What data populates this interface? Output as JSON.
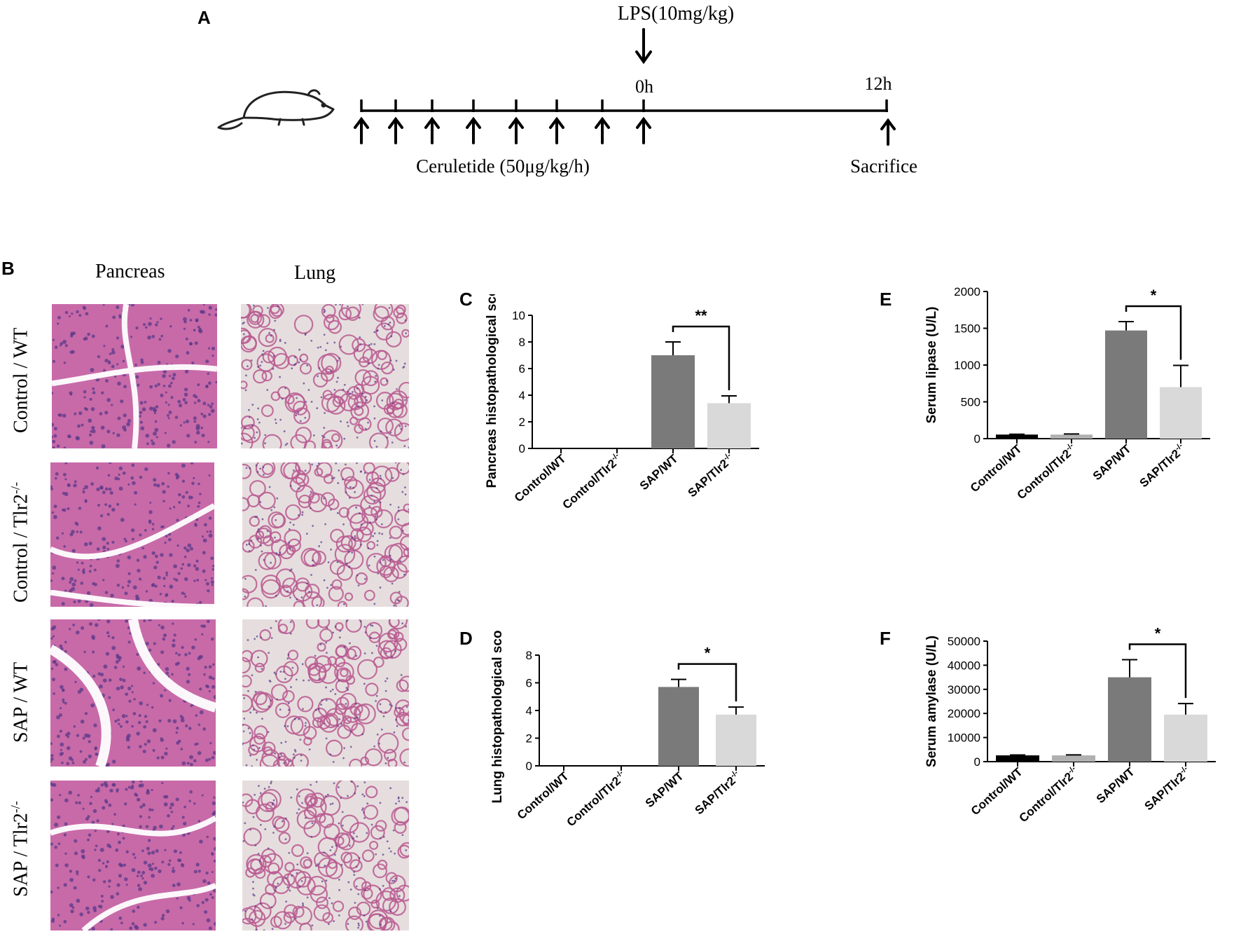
{
  "panels": {
    "A": "A",
    "B": "B",
    "C": "C",
    "D": "D",
    "E": "E",
    "F": "F"
  },
  "timeline": {
    "lps_label": "LPS(10mg/kg)",
    "t0_label": "0h",
    "t12_label": "12h",
    "ceruletide_label": "Ceruletide (50μg/kg/h)",
    "sacrifice_label": "Sacrifice",
    "mouse_icon": "mouse-icon"
  },
  "histology": {
    "columns": [
      "Pancreas",
      "Lung"
    ],
    "rows": [
      "Control / WT",
      "Control / Tlr2",
      "SAP / WT",
      "SAP / Tlr2"
    ],
    "row_superscripts": [
      "",
      "-/-",
      "",
      "-/-"
    ],
    "colors": {
      "pancreas": "#c86aa8",
      "lung_bg": "#e6dede",
      "lung_tissue": "#b85a90",
      "nuclei": "#5a3a8a"
    }
  },
  "chart_data": [
    {
      "id": "C",
      "type": "bar",
      "categories": [
        "Control/WT",
        "Control/Tlr2",
        "SAP/WT",
        "SAP/Tlr2"
      ],
      "category_sup": [
        "",
        "-/-",
        "",
        "-/-"
      ],
      "values": [
        0,
        0,
        7.0,
        3.4
      ],
      "errors": [
        0,
        0,
        1.0,
        0.55
      ],
      "colors": [
        "#000000",
        "#b0b0b0",
        "#7a7a7a",
        "#d9d9d9"
      ],
      "ylabel": "Pancreas histopathological score",
      "ylim": [
        0,
        10
      ],
      "yticks": [
        0,
        2,
        4,
        6,
        8,
        10
      ],
      "significance": {
        "from": 2,
        "to": 3,
        "label": "**"
      }
    },
    {
      "id": "D",
      "type": "bar",
      "categories": [
        "Control/WT",
        "Control/Tlr2",
        "SAP/WT",
        "SAP/Tlr2"
      ],
      "category_sup": [
        "",
        "-/-",
        "",
        "-/-"
      ],
      "values": [
        0,
        0,
        5.7,
        3.7
      ],
      "errors": [
        0,
        0,
        0.55,
        0.55
      ],
      "colors": [
        "#000000",
        "#b0b0b0",
        "#7a7a7a",
        "#d9d9d9"
      ],
      "ylabel": "Lung histopathological score",
      "ylim": [
        0,
        8
      ],
      "yticks": [
        0,
        2,
        4,
        6,
        8
      ],
      "significance": {
        "from": 2,
        "to": 3,
        "label": "*"
      }
    },
    {
      "id": "E",
      "type": "bar",
      "categories": [
        "Control/WT",
        "Control/Tlr2",
        "SAP/WT",
        "SAP/Tlr2"
      ],
      "category_sup": [
        "",
        "-/-",
        "",
        "-/-"
      ],
      "values": [
        55,
        55,
        1470,
        700
      ],
      "errors": [
        5,
        8,
        120,
        295
      ],
      "colors": [
        "#000000",
        "#b0b0b0",
        "#7a7a7a",
        "#d9d9d9"
      ],
      "ylabel": "Serum lipase (U/L)",
      "ylim": [
        0,
        2000
      ],
      "yticks": [
        0,
        500,
        1000,
        1500,
        2000
      ],
      "significance": {
        "from": 2,
        "to": 3,
        "label": "*"
      }
    },
    {
      "id": "F",
      "type": "bar",
      "categories": [
        "Control/WT",
        "Control/Tlr2",
        "SAP/WT",
        "SAP/Tlr2"
      ],
      "category_sup": [
        "",
        "-/-",
        "",
        "-/-"
      ],
      "values": [
        2600,
        2600,
        35000,
        19500
      ],
      "errors": [
        150,
        200,
        7300,
        4600
      ],
      "colors": [
        "#000000",
        "#b0b0b0",
        "#7a7a7a",
        "#d9d9d9"
      ],
      "ylabel": "Serum amylase (U/L)",
      "ylim": [
        0,
        50000
      ],
      "yticks": [
        0,
        10000,
        20000,
        30000,
        40000,
        50000
      ],
      "significance": {
        "from": 2,
        "to": 3,
        "label": "*"
      }
    }
  ]
}
